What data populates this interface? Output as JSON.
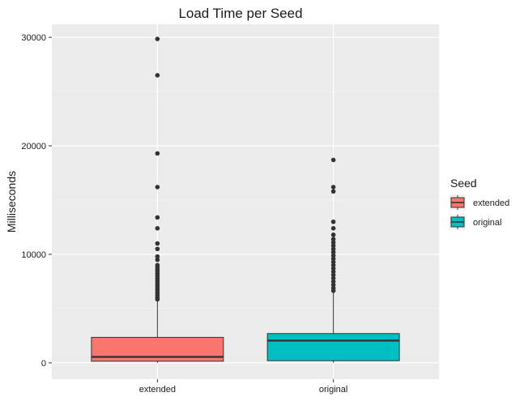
{
  "chart_data": {
    "type": "boxplot",
    "title": "Load Time per Seed",
    "xlabel": "",
    "ylabel": "Milliseconds",
    "ylim": [
      -1500,
      31200
    ],
    "y_ticks": [
      0,
      10000,
      20000,
      30000
    ],
    "grid": true,
    "legend": {
      "title": "Seed",
      "placement": "right"
    },
    "categories": [
      "extended",
      "original"
    ],
    "series": [
      {
        "name": "extended",
        "color": "#F8766D",
        "box": {
          "whisker_low": 0,
          "q1": 150,
          "median": 550,
          "q3": 2350,
          "whisker_high": 5700
        },
        "outliers": [
          29850,
          26500,
          19300,
          16200,
          13400,
          12400,
          11000,
          10500,
          9800,
          9500,
          9000,
          8800,
          8600,
          8400,
          8200,
          8000,
          7800,
          7600,
          7400,
          7200,
          7000,
          6800,
          6600,
          6400,
          6200,
          6000,
          5850
        ]
      },
      {
        "name": "original",
        "color": "#00BFC4",
        "box": {
          "whisker_low": 0,
          "q1": 200,
          "median": 2050,
          "q3": 2700,
          "whisker_high": 6500
        },
        "outliers": [
          18700,
          16200,
          15800,
          13000,
          12400,
          11800,
          11400,
          11100,
          10800,
          10500,
          10200,
          9900,
          9600,
          9300,
          9000,
          8700,
          8400,
          8100,
          7800,
          7500,
          7200,
          6900,
          6650
        ]
      }
    ]
  }
}
